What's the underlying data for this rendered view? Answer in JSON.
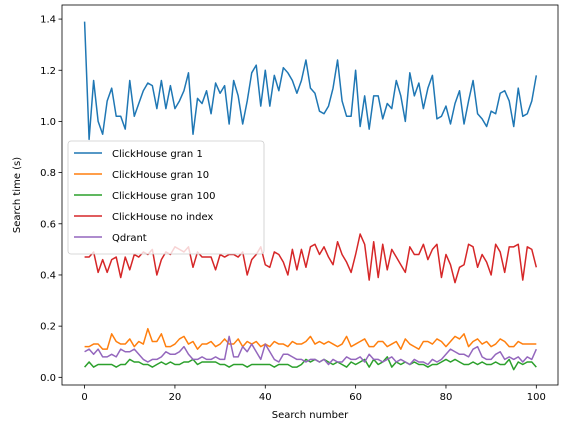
{
  "chart_data": {
    "type": "line",
    "title": "",
    "xlabel": "Search number",
    "ylabel": "Search time (s)",
    "xlim": [
      -5,
      104.8
    ],
    "ylim": [
      -0.03,
      1.455
    ],
    "xticks": [
      0,
      20,
      40,
      60,
      80,
      100
    ],
    "yticks": [
      0.0,
      0.2,
      0.4,
      0.6,
      0.8,
      1.0,
      1.2,
      1.4
    ],
    "ytick_labels": [
      "0.0",
      "0.2",
      "0.4",
      "0.6",
      "0.8",
      "1.0",
      "1.2",
      "1.4"
    ],
    "grid": false,
    "legend_position": "center-left",
    "series": [
      {
        "name": "ClickHouse gran 1",
        "color": "#1f77b4",
        "values": [
          1.39,
          0.93,
          1.16,
          1.0,
          0.95,
          1.08,
          1.13,
          1.02,
          1.02,
          0.97,
          1.16,
          1.02,
          1.07,
          1.12,
          1.15,
          1.14,
          1.05,
          1.16,
          1.05,
          1.14,
          1.05,
          1.08,
          1.12,
          1.19,
          0.95,
          1.09,
          1.07,
          1.12,
          1.03,
          1.15,
          1.11,
          1.14,
          0.99,
          1.16,
          1.1,
          0.99,
          1.08,
          1.19,
          1.22,
          1.06,
          1.2,
          1.06,
          1.18,
          1.12,
          1.21,
          1.19,
          1.16,
          1.11,
          1.16,
          1.24,
          1.13,
          1.11,
          1.04,
          1.03,
          1.06,
          1.13,
          1.24,
          1.08,
          1.02,
          1.02,
          1.2,
          0.98,
          1.1,
          0.97,
          1.1,
          1.1,
          1.01,
          1.07,
          1.05,
          1.16,
          1.1,
          1.0,
          1.19,
          1.1,
          1.15,
          1.05,
          1.13,
          1.18,
          1.01,
          1.02,
          1.06,
          0.99,
          1.07,
          1.12,
          0.99,
          1.08,
          1.16,
          1.03,
          1.01,
          0.98,
          1.04,
          1.03,
          1.11,
          1.12,
          1.08,
          0.98,
          1.13,
          1.02,
          1.03,
          1.08,
          1.18
        ]
      },
      {
        "name": "ClickHouse gran 10",
        "color": "#ff7f0e",
        "values": [
          0.12,
          0.12,
          0.13,
          0.13,
          0.11,
          0.11,
          0.17,
          0.14,
          0.13,
          0.13,
          0.15,
          0.12,
          0.14,
          0.13,
          0.19,
          0.14,
          0.14,
          0.17,
          0.12,
          0.12,
          0.13,
          0.15,
          0.16,
          0.13,
          0.14,
          0.11,
          0.13,
          0.13,
          0.14,
          0.12,
          0.13,
          0.15,
          0.13,
          0.13,
          0.15,
          0.12,
          0.14,
          0.13,
          0.14,
          0.12,
          0.13,
          0.12,
          0.14,
          0.13,
          0.13,
          0.12,
          0.14,
          0.13,
          0.13,
          0.14,
          0.16,
          0.13,
          0.14,
          0.13,
          0.14,
          0.13,
          0.12,
          0.13,
          0.16,
          0.12,
          0.13,
          0.14,
          0.15,
          0.12,
          0.12,
          0.14,
          0.14,
          0.12,
          0.13,
          0.14,
          0.11,
          0.15,
          0.13,
          0.12,
          0.11,
          0.14,
          0.14,
          0.13,
          0.15,
          0.14,
          0.12,
          0.14,
          0.16,
          0.15,
          0.17,
          0.12,
          0.14,
          0.15,
          0.13,
          0.14,
          0.12,
          0.13,
          0.15,
          0.14,
          0.12,
          0.12,
          0.14,
          0.13,
          0.13,
          0.13,
          0.13
        ]
      },
      {
        "name": "ClickHouse gran 100",
        "color": "#2ca02c",
        "values": [
          0.04,
          0.06,
          0.04,
          0.05,
          0.05,
          0.05,
          0.05,
          0.04,
          0.05,
          0.05,
          0.07,
          0.06,
          0.06,
          0.05,
          0.05,
          0.04,
          0.05,
          0.06,
          0.05,
          0.06,
          0.05,
          0.05,
          0.06,
          0.06,
          0.07,
          0.05,
          0.06,
          0.06,
          0.06,
          0.06,
          0.05,
          0.05,
          0.04,
          0.05,
          0.05,
          0.05,
          0.04,
          0.05,
          0.05,
          0.05,
          0.05,
          0.05,
          0.04,
          0.05,
          0.05,
          0.05,
          0.04,
          0.04,
          0.05,
          0.07,
          0.06,
          0.07,
          0.06,
          0.07,
          0.06,
          0.05,
          0.06,
          0.05,
          0.04,
          0.06,
          0.05,
          0.06,
          0.07,
          0.04,
          0.07,
          0.05,
          0.06,
          0.08,
          0.04,
          0.06,
          0.05,
          0.06,
          0.05,
          0.06,
          0.05,
          0.05,
          0.04,
          0.05,
          0.05,
          0.06,
          0.07,
          0.06,
          0.07,
          0.06,
          0.05,
          0.05,
          0.06,
          0.05,
          0.06,
          0.05,
          0.05,
          0.06,
          0.05,
          0.05,
          0.07,
          0.03,
          0.06,
          0.05,
          0.06,
          0.06,
          0.04
        ]
      },
      {
        "name": "ClickHouse no index",
        "color": "#d62728",
        "values": [
          0.47,
          0.47,
          0.49,
          0.41,
          0.46,
          0.41,
          0.46,
          0.47,
          0.39,
          0.47,
          0.42,
          0.48,
          0.47,
          0.49,
          0.48,
          0.5,
          0.4,
          0.46,
          0.49,
          0.48,
          0.51,
          0.5,
          0.49,
          0.51,
          0.43,
          0.49,
          0.47,
          0.47,
          0.47,
          0.42,
          0.48,
          0.47,
          0.48,
          0.48,
          0.47,
          0.49,
          0.4,
          0.46,
          0.48,
          0.51,
          0.44,
          0.43,
          0.49,
          0.48,
          0.45,
          0.4,
          0.5,
          0.42,
          0.5,
          0.43,
          0.51,
          0.52,
          0.48,
          0.51,
          0.47,
          0.44,
          0.53,
          0.48,
          0.45,
          0.41,
          0.48,
          0.56,
          0.52,
          0.38,
          0.53,
          0.39,
          0.52,
          0.42,
          0.5,
          0.47,
          0.44,
          0.41,
          0.51,
          0.48,
          0.48,
          0.52,
          0.46,
          0.5,
          0.52,
          0.39,
          0.48,
          0.44,
          0.37,
          0.43,
          0.44,
          0.52,
          0.51,
          0.43,
          0.48,
          0.45,
          0.4,
          0.52,
          0.49,
          0.41,
          0.51,
          0.51,
          0.52,
          0.38,
          0.51,
          0.5,
          0.43
        ]
      },
      {
        "name": "Qdrant",
        "color": "#9467bd",
        "values": [
          0.1,
          0.11,
          0.09,
          0.11,
          0.08,
          0.08,
          0.09,
          0.08,
          0.11,
          0.1,
          0.1,
          0.11,
          0.09,
          0.07,
          0.06,
          0.07,
          0.07,
          0.08,
          0.1,
          0.09,
          0.09,
          0.1,
          0.12,
          0.09,
          0.07,
          0.07,
          0.08,
          0.07,
          0.07,
          0.08,
          0.07,
          0.07,
          0.16,
          0.08,
          0.08,
          0.12,
          0.1,
          0.13,
          0.1,
          0.07,
          0.13,
          0.1,
          0.07,
          0.06,
          0.09,
          0.09,
          0.08,
          0.07,
          0.07,
          0.06,
          0.07,
          0.07,
          0.06,
          0.07,
          0.05,
          0.07,
          0.06,
          0.06,
          0.08,
          0.07,
          0.07,
          0.08,
          0.06,
          0.09,
          0.07,
          0.07,
          0.06,
          0.07,
          0.08,
          0.06,
          0.07,
          0.06,
          0.05,
          0.07,
          0.06,
          0.06,
          0.05,
          0.07,
          0.06,
          0.07,
          0.09,
          0.11,
          0.1,
          0.09,
          0.09,
          0.08,
          0.11,
          0.12,
          0.08,
          0.07,
          0.07,
          0.09,
          0.1,
          0.07,
          0.08,
          0.07,
          0.08,
          0.06,
          0.08,
          0.07,
          0.11
        ]
      }
    ]
  }
}
